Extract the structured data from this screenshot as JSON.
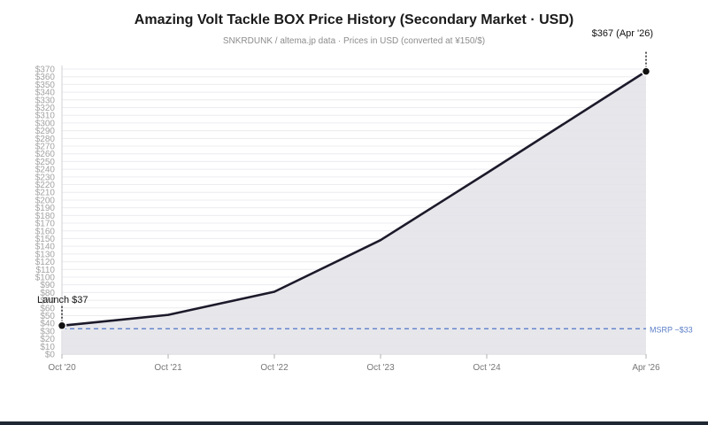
{
  "title": "Amazing Volt Tackle BOX Price History (Secondary Market · USD)",
  "subtitle": "SNKRDUNK / altema.jp data · Prices in USD (converted at ¥150/$)",
  "colors": {
    "line": "#1c1a2a",
    "area": "#e3e3e8",
    "msrp": "#4f74c8",
    "grid": "#ececf0"
  },
  "chart_data": {
    "type": "area",
    "x": [
      "2020-10",
      "2021-10",
      "2022-10",
      "2023-10",
      "2024-10",
      "2026-04"
    ],
    "x_tick_labels": [
      "Oct '20",
      "Oct '21",
      "Oct '22",
      "Oct '23",
      "Oct '24",
      "Apr '26"
    ],
    "values": [
      37,
      51,
      81,
      148,
      235,
      367
    ],
    "ylim": [
      0,
      370
    ],
    "y_tick_step": 10,
    "y_tick_prefix": "$",
    "grid": true,
    "reference_line": {
      "value": 33,
      "label": "MSRP ~$33",
      "style": "dashed"
    },
    "annotations": [
      {
        "x": "2020-10",
        "value": 37,
        "label": "Launch $37"
      },
      {
        "x": "2026-04",
        "value": 367,
        "label": "$367 (Apr '26)"
      }
    ]
  }
}
